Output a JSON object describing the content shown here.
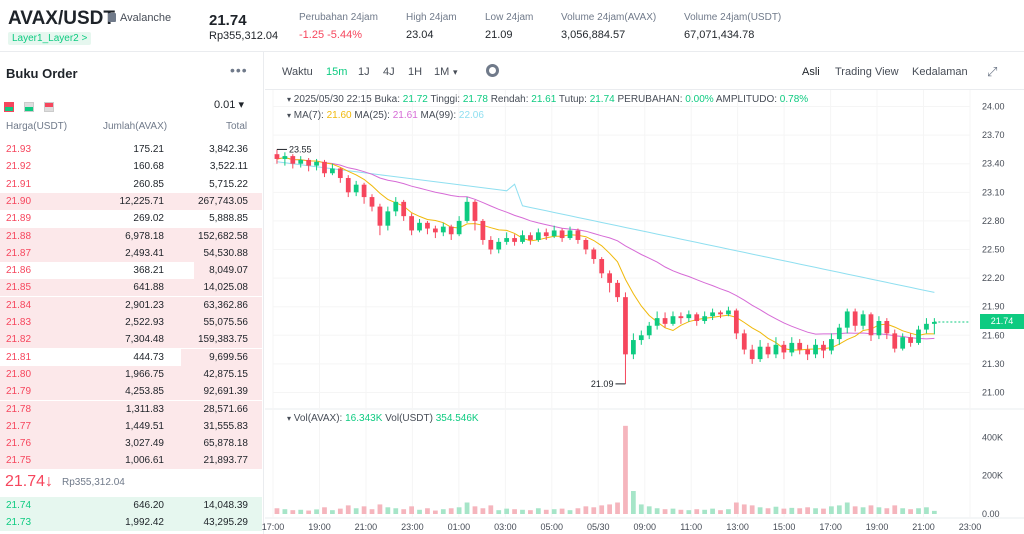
{
  "header": {
    "pair": "AVAX/USDT",
    "coin_name": "Avalanche",
    "tag": "Layer1_Layer2 >",
    "last_price": "21.74",
    "last_price_idr": "Rp355,312.04",
    "stats": [
      {
        "label": "Perubahan 24jam",
        "value": "-1.25 -5.44%"
      },
      {
        "label": "High 24jam",
        "value": "23.04"
      },
      {
        "label": "Low 24jam",
        "value": "21.09"
      },
      {
        "label": "Volume 24jam(AVAX)",
        "value": "3,056,884.57"
      },
      {
        "label": "Volume 24jam(USDT)",
        "value": "67,071,434.78"
      }
    ]
  },
  "orderbook": {
    "title": "Buku Order",
    "more": "•••",
    "precision": "0.01 ▾",
    "columns": [
      "Harga(USDT)",
      "Jumlah(AVAX)",
      "Total"
    ],
    "asks": [
      {
        "price": "21.93",
        "amount": "175.21",
        "total": "3,842.36",
        "depth": 0.0
      },
      {
        "price": "21.92",
        "amount": "160.68",
        "total": "3,522.11",
        "depth": 0.0
      },
      {
        "price": "21.91",
        "amount": "260.85",
        "total": "5,715.22",
        "depth": 0.0
      },
      {
        "price": "21.90",
        "amount": "12,225.71",
        "total": "267,743.05",
        "depth": 1.0
      },
      {
        "price": "21.89",
        "amount": "269.02",
        "total": "5,888.85",
        "depth": 0.0
      },
      {
        "price": "21.88",
        "amount": "6,978.18",
        "total": "152,682.58",
        "depth": 1.0
      },
      {
        "price": "21.87",
        "amount": "2,493.41",
        "total": "54,530.88",
        "depth": 1.0
      },
      {
        "price": "21.86",
        "amount": "368.21",
        "total": "8,049.07",
        "depth": 0.26
      },
      {
        "price": "21.85",
        "amount": "641.88",
        "total": "14,025.08",
        "depth": 1.0
      },
      {
        "price": "21.84",
        "amount": "2,901.23",
        "total": "63,362.86",
        "depth": 1.0
      },
      {
        "price": "21.83",
        "amount": "2,522.93",
        "total": "55,075.56",
        "depth": 1.0
      },
      {
        "price": "21.82",
        "amount": "7,304.48",
        "total": "159,383.75",
        "depth": 1.0
      },
      {
        "price": "21.81",
        "amount": "444.73",
        "total": "9,699.56",
        "depth": 0.31
      },
      {
        "price": "21.80",
        "amount": "1,966.75",
        "total": "42,875.15",
        "depth": 1.0
      },
      {
        "price": "21.79",
        "amount": "4,253.85",
        "total": "92,691.39",
        "depth": 1.0
      },
      {
        "price": "21.78",
        "amount": "1,311.83",
        "total": "28,571.66",
        "depth": 1.0
      },
      {
        "price": "21.77",
        "amount": "1,449.51",
        "total": "31,555.83",
        "depth": 1.0
      },
      {
        "price": "21.76",
        "amount": "3,027.49",
        "total": "65,878.18",
        "depth": 1.0
      },
      {
        "price": "21.75",
        "amount": "1,006.61",
        "total": "21,893.77",
        "depth": 1.0
      }
    ],
    "mid_price": "21.74↓",
    "mid_price_idr": "Rp355,312.04",
    "bids": [
      {
        "price": "21.74",
        "amount": "646.20",
        "total": "14,048.39",
        "depth": 1.0
      },
      {
        "price": "21.73",
        "amount": "1,992.42",
        "total": "43,295.29",
        "depth": 1.0
      }
    ]
  },
  "chart_toolbar": {
    "intervals": [
      "Waktu",
      "15m",
      "1J",
      "4J",
      "1H",
      "1M",
      "▾"
    ],
    "active_interval": "15m",
    "views": [
      "Asli",
      "Trading View",
      "Kedalaman"
    ],
    "active_view": "Asli"
  },
  "chart_legend": {
    "ohlc": "2025/05/30 22:15",
    "buka_label": "Buka:",
    "buka": "21.72",
    "tinggi_label": "Tinggi:",
    "tinggi": "21.78",
    "rendah_label": "Rendah:",
    "rendah": "21.61",
    "tutup_label": "Tutup:",
    "tutup": "21.74",
    "perubahan_label": "PERUBAHAN:",
    "perubahan": "0.00%",
    "amplitudo_label": "AMPLITUDO:",
    "amplitudo": "0.78%",
    "ma7_label": "MA(7):",
    "ma7": "21.60",
    "ma25_label": "MA(25):",
    "ma25": "21.61",
    "ma99_label": "MA(99):",
    "ma99": "22.06",
    "vol_label": "Vol(AVAX):",
    "vol": "16.343K",
    "volusdt_label": "Vol(USDT)",
    "volusdt": "354.546K"
  },
  "colors": {
    "up": "#0ecb81",
    "down": "#f6465d",
    "ma7": "#f0b90b",
    "ma25": "#d66bd6",
    "ma99": "#8fdff0"
  },
  "chart_data": {
    "type": "candlestick",
    "price_axis": [
      "24.00",
      "23.70",
      "23.40",
      "23.10",
      "22.80",
      "22.50",
      "22.20",
      "21.90",
      "21.60",
      "21.30",
      "21.00"
    ],
    "ylim": [
      20.9,
      24.1
    ],
    "vol_axis": [
      "400K",
      "200K",
      "0.00"
    ],
    "vol_ylim": [
      0,
      480000
    ],
    "time_axis": [
      "17:00",
      "19:00",
      "21:00",
      "23:00",
      "01:00",
      "03:00",
      "05:00",
      "05/30",
      "09:00",
      "11:00",
      "13:00",
      "15:00",
      "17:00",
      "19:00",
      "21:00",
      "23:00"
    ],
    "x_range": [
      0,
      120
    ],
    "time_tick_x": [
      0,
      8,
      16,
      24,
      32,
      40,
      48,
      56,
      64,
      72,
      80,
      88,
      96,
      104,
      112,
      120
    ],
    "high_label": "23.55",
    "low_label": "21.09",
    "last_price_tag": "21.74",
    "candles": [
      [
        23.5,
        23.45,
        23.55,
        23.4
      ],
      [
        23.45,
        23.48,
        23.52,
        23.38
      ],
      [
        23.48,
        23.4,
        23.5,
        23.35
      ],
      [
        23.4,
        23.44,
        23.48,
        23.36
      ],
      [
        23.44,
        23.38,
        23.46,
        23.32
      ],
      [
        23.38,
        23.42,
        23.45,
        23.33
      ],
      [
        23.42,
        23.3,
        23.44,
        23.26
      ],
      [
        23.3,
        23.35,
        23.4,
        23.28
      ],
      [
        23.35,
        23.25,
        23.36,
        23.2
      ],
      [
        23.25,
        23.1,
        23.28,
        23.05
      ],
      [
        23.1,
        23.18,
        23.22,
        23.06
      ],
      [
        23.18,
        23.05,
        23.2,
        22.98
      ],
      [
        23.05,
        22.95,
        23.08,
        22.9
      ],
      [
        22.95,
        22.75,
        22.98,
        22.65
      ],
      [
        22.75,
        22.9,
        22.95,
        22.7
      ],
      [
        22.9,
        23.0,
        23.05,
        22.85
      ],
      [
        23.0,
        22.85,
        23.02,
        22.8
      ],
      [
        22.85,
        22.7,
        22.88,
        22.65
      ],
      [
        22.7,
        22.78,
        22.82,
        22.68
      ],
      [
        22.78,
        22.72,
        22.8,
        22.66
      ],
      [
        22.72,
        22.68,
        22.75,
        22.62
      ],
      [
        22.68,
        22.74,
        22.78,
        22.64
      ],
      [
        22.74,
        22.66,
        22.76,
        22.6
      ],
      [
        22.66,
        22.8,
        22.85,
        22.64
      ],
      [
        22.8,
        23.0,
        23.05,
        22.78
      ],
      [
        23.0,
        22.8,
        23.02,
        22.7
      ],
      [
        22.8,
        22.6,
        22.82,
        22.55
      ],
      [
        22.6,
        22.5,
        22.64,
        22.45
      ],
      [
        22.5,
        22.58,
        22.62,
        22.46
      ],
      [
        22.58,
        22.62,
        22.68,
        22.55
      ],
      [
        22.62,
        22.58,
        22.66,
        22.54
      ],
      [
        22.58,
        22.65,
        22.7,
        22.56
      ],
      [
        22.65,
        22.6,
        22.68,
        22.55
      ],
      [
        22.6,
        22.68,
        22.72,
        22.58
      ],
      [
        22.68,
        22.64,
        22.72,
        22.6
      ],
      [
        22.64,
        22.7,
        22.75,
        22.62
      ],
      [
        22.7,
        22.62,
        22.72,
        22.58
      ],
      [
        22.62,
        22.7,
        22.74,
        22.6
      ],
      [
        22.7,
        22.6,
        22.72,
        22.56
      ],
      [
        22.6,
        22.5,
        22.62,
        22.45
      ],
      [
        22.5,
        22.4,
        22.52,
        22.35
      ],
      [
        22.4,
        22.25,
        22.42,
        22.2
      ],
      [
        22.25,
        22.15,
        22.28,
        22.05
      ],
      [
        22.15,
        22.0,
        22.18,
        21.95
      ],
      [
        22.0,
        21.4,
        22.05,
        21.09
      ],
      [
        21.4,
        21.55,
        21.62,
        21.35
      ],
      [
        21.55,
        21.6,
        21.65,
        21.5
      ],
      [
        21.6,
        21.7,
        21.74,
        21.56
      ],
      [
        21.7,
        21.78,
        21.85,
        21.66
      ],
      [
        21.78,
        21.72,
        21.84,
        21.68
      ],
      [
        21.72,
        21.8,
        21.85,
        21.7
      ],
      [
        21.8,
        21.78,
        21.84,
        21.72
      ],
      [
        21.78,
        21.82,
        21.86,
        21.74
      ],
      [
        21.82,
        21.75,
        21.84,
        21.7
      ],
      [
        21.75,
        21.8,
        21.85,
        21.72
      ],
      [
        21.8,
        21.84,
        21.88,
        21.76
      ],
      [
        21.84,
        21.82,
        21.86,
        21.78
      ],
      [
        21.82,
        21.86,
        21.9,
        21.8
      ],
      [
        21.86,
        21.62,
        21.88,
        21.56
      ],
      [
        21.62,
        21.45,
        21.66,
        21.4
      ],
      [
        21.45,
        21.35,
        21.5,
        21.3
      ],
      [
        21.35,
        21.48,
        21.55,
        21.32
      ],
      [
        21.48,
        21.4,
        21.52,
        21.36
      ],
      [
        21.4,
        21.5,
        21.58,
        21.36
      ],
      [
        21.5,
        21.42,
        21.54,
        21.35
      ],
      [
        21.42,
        21.52,
        21.58,
        21.38
      ],
      [
        21.52,
        21.45,
        21.56,
        21.4
      ],
      [
        21.45,
        21.4,
        21.5,
        21.34
      ],
      [
        21.4,
        21.5,
        21.56,
        21.36
      ],
      [
        21.5,
        21.44,
        21.54,
        21.36
      ],
      [
        21.44,
        21.56,
        21.62,
        21.4
      ],
      [
        21.56,
        21.68,
        21.72,
        21.5
      ],
      [
        21.68,
        21.85,
        21.88,
        21.62
      ],
      [
        21.85,
        21.7,
        21.88,
        21.64
      ],
      [
        21.7,
        21.82,
        21.86,
        21.66
      ],
      [
        21.82,
        21.6,
        21.84,
        21.54
      ],
      [
        21.6,
        21.75,
        21.8,
        21.56
      ],
      [
        21.75,
        21.62,
        21.78,
        21.56
      ],
      [
        21.62,
        21.46,
        21.66,
        21.42
      ],
      [
        21.46,
        21.58,
        21.62,
        21.44
      ],
      [
        21.58,
        21.52,
        21.62,
        21.48
      ],
      [
        21.52,
        21.66,
        21.7,
        21.5
      ],
      [
        21.66,
        21.72,
        21.78,
        21.62
      ],
      [
        21.72,
        21.74,
        21.78,
        21.61
      ]
    ],
    "volumes": [
      30000,
      25000,
      20000,
      22000,
      18000,
      24000,
      35000,
      20000,
      28000,
      45000,
      30000,
      40000,
      25000,
      50000,
      35000,
      30000,
      25000,
      40000,
      22000,
      30000,
      18000,
      25000,
      30000,
      35000,
      60000,
      40000,
      30000,
      45000,
      20000,
      28000,
      25000,
      22000,
      20000,
      30000,
      22000,
      25000,
      28000,
      20000,
      30000,
      40000,
      35000,
      45000,
      50000,
      60000,
      460000,
      120000,
      50000,
      40000,
      30000,
      25000,
      28000,
      22000,
      20000,
      25000,
      22000,
      28000,
      20000,
      25000,
      60000,
      50000,
      45000,
      35000,
      30000,
      38000,
      28000,
      32000,
      30000,
      35000,
      30000,
      28000,
      40000,
      45000,
      60000,
      40000,
      35000,
      45000,
      35000,
      30000,
      45000,
      30000,
      25000,
      30000,
      35000,
      16343
    ]
  }
}
